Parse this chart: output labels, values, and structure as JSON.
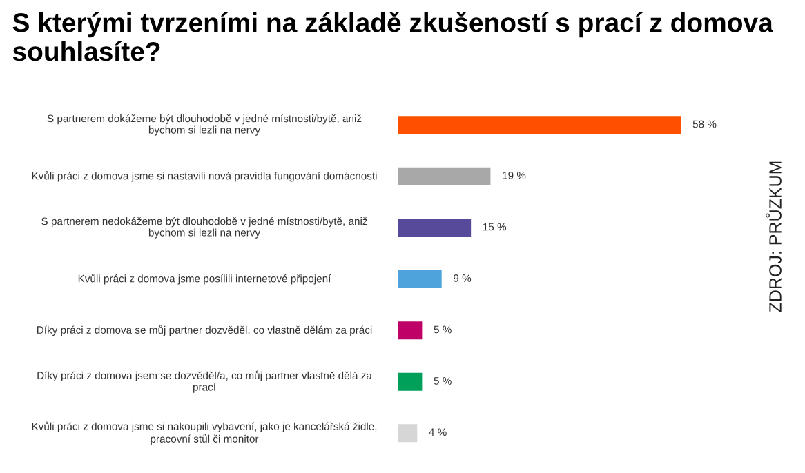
{
  "chart_data": {
    "type": "bar",
    "orientation": "horizontal",
    "title": "S kterými tvrzeními na základě zkušeností s prací z domova souhlasíte?",
    "categories": [
      "S partnerem dokážeme být dlouhodobě v jedné místnosti/bytě, aniž bychom si lezli na nervy",
      "Kvůli práci z domova jsme si nastavili nová pravidla fungování domácnosti",
      "S partnerem nedokážeme být dlouhodobě v jedné místnosti/bytě, aniž bychom si lezli na nervy",
      "Kvůli práci z domova jsme posílili internetové připojení",
      "Díky práci z domova se můj partner dozvěděl, co vlastně dělám za práci",
      "Díky práci z domova jsem se dozvěděl/a, co můj partner vlastně dělá za prací",
      "Kvůli práci z domova jsme si nakoupili vybavení, jako je kancelářská židle, pracovní stůl či monitor"
    ],
    "values": [
      58,
      19,
      15,
      9,
      5,
      5,
      4
    ],
    "value_labels": [
      "58 %",
      "19 %",
      "15 %",
      "9 %",
      "5 %",
      "5 %",
      "4 %"
    ],
    "colors": [
      "#ff5000",
      "#a8a8a8",
      "#574a9a",
      "#4ea3dc",
      "#bf0067",
      "#00a05a",
      "#d6d6d6"
    ],
    "annotations": [
      "ZDROJ: PRŮZKUM"
    ]
  }
}
